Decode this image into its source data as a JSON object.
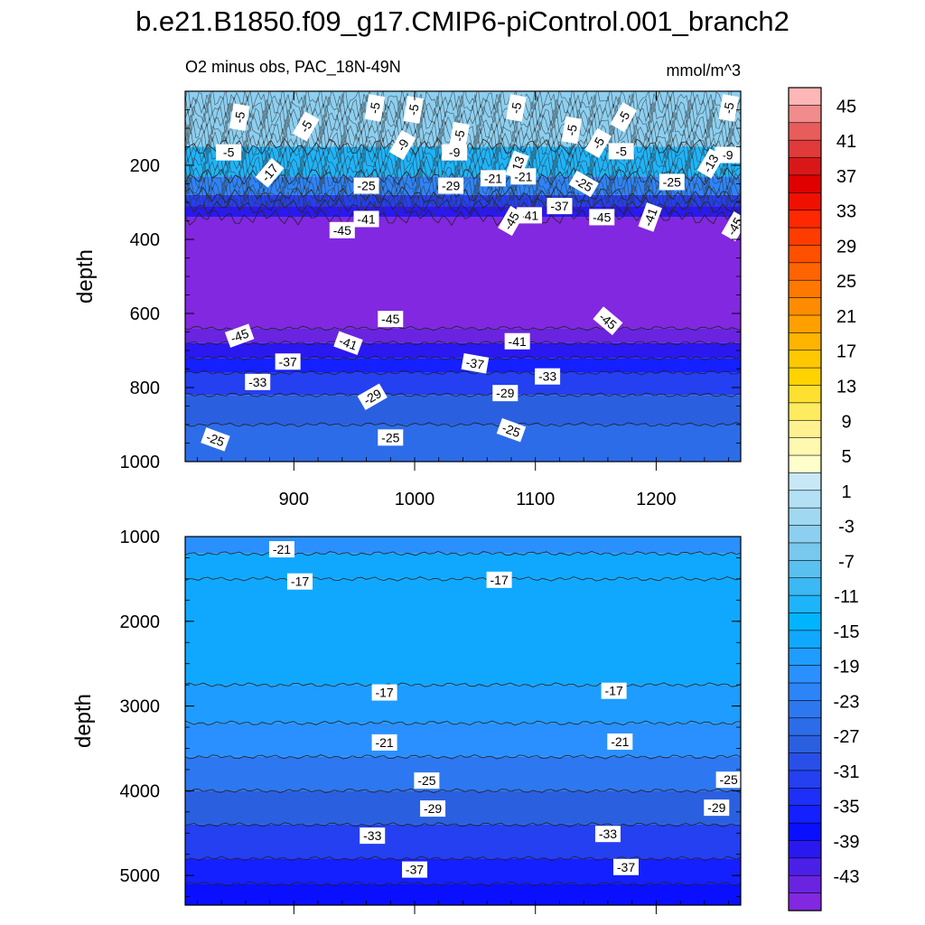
{
  "title": "b.e21.B1850.f09_g17.CMIP6-piControl.001_branch2",
  "subtitle_left": "O2 minus obs, PAC_18N-49N",
  "subtitle_right": "mmol/m^3",
  "chart_data": [
    {
      "type": "heatmap",
      "panel": "upper",
      "xlabel": "",
      "ylabel": "depth",
      "xlim": [
        810,
        1270
      ],
      "ylim": [
        1000,
        0
      ],
      "x_ticks": [
        900,
        1000,
        1100,
        1200
      ],
      "y_ticks": [
        200,
        400,
        600,
        800,
        1000
      ],
      "layers": [
        {
          "depth": [
            0,
            150
          ],
          "value": -4
        },
        {
          "depth": [
            150,
            230
          ],
          "value": -12
        },
        {
          "depth": [
            230,
            280
          ],
          "value": -22
        },
        {
          "depth": [
            280,
            310
          ],
          "value": -32
        },
        {
          "depth": [
            310,
            340
          ],
          "value": -40
        },
        {
          "depth": [
            340,
            640
          ],
          "value": -46
        },
        {
          "depth": [
            640,
            680
          ],
          "value": -44
        },
        {
          "depth": [
            680,
            720
          ],
          "value": -40
        },
        {
          "depth": [
            720,
            760
          ],
          "value": -36
        },
        {
          "depth": [
            760,
            820
          ],
          "value": -32
        },
        {
          "depth": [
            820,
            900
          ],
          "value": -29
        },
        {
          "depth": [
            900,
            1000
          ],
          "value": -26
        }
      ],
      "contour_labels": [
        {
          "x": 855,
          "depth": 70,
          "text": "-5",
          "rot": -80
        },
        {
          "x": 910,
          "depth": 95,
          "text": "-5",
          "rot": -60
        },
        {
          "x": 967,
          "depth": 45,
          "text": "-5",
          "rot": -80
        },
        {
          "x": 1037,
          "depth": 120,
          "text": "-5",
          "rot": -80
        },
        {
          "x": 846,
          "depth": 165,
          "text": "-5",
          "rot": 0
        },
        {
          "x": 1084,
          "depth": 45,
          "text": "-5",
          "rot": -80
        },
        {
          "x": 1130,
          "depth": 105,
          "text": "-5",
          "rot": -80
        },
        {
          "x": 1152,
          "depth": 140,
          "text": "-5",
          "rot": -60
        },
        {
          "x": 1173,
          "depth": 70,
          "text": "-5",
          "rot": -60
        },
        {
          "x": 1171,
          "depth": 162,
          "text": "-5",
          "rot": 0
        },
        {
          "x": 1260,
          "depth": 45,
          "text": "-5",
          "rot": -80
        },
        {
          "x": 999,
          "depth": 50,
          "text": "-5",
          "rot": -80
        },
        {
          "x": 990,
          "depth": 145,
          "text": "-9",
          "rot": -60
        },
        {
          "x": 1033,
          "depth": 165,
          "text": "-9",
          "rot": 0
        },
        {
          "x": 1259,
          "depth": 172,
          "text": "-9",
          "rot": 0
        },
        {
          "x": 1085,
          "depth": 200,
          "text": "-13",
          "rot": -70
        },
        {
          "x": 1245,
          "depth": 195,
          "text": "-13",
          "rot": -60
        },
        {
          "x": 880,
          "depth": 220,
          "text": "-17",
          "rot": -50
        },
        {
          "x": 960,
          "depth": 255,
          "text": "-25",
          "rot": 0
        },
        {
          "x": 1140,
          "depth": 250,
          "text": "-25",
          "rot": 30
        },
        {
          "x": 1213,
          "depth": 245,
          "text": "-25",
          "rot": 0
        },
        {
          "x": 1030,
          "depth": 255,
          "text": "-29",
          "rot": 0
        },
        {
          "x": 1090,
          "depth": 230,
          "text": "-21",
          "rot": 0
        },
        {
          "x": 1065,
          "depth": 235,
          "text": "-21",
          "rot": 0
        },
        {
          "x": 1120,
          "depth": 310,
          "text": "-37",
          "rot": 0
        },
        {
          "x": 960,
          "depth": 345,
          "text": "-41",
          "rot": 0
        },
        {
          "x": 1095,
          "depth": 335,
          "text": "-41",
          "rot": 0
        },
        {
          "x": 1195,
          "depth": 340,
          "text": "-41",
          "rot": -70
        },
        {
          "x": 940,
          "depth": 375,
          "text": "-45",
          "rot": 0
        },
        {
          "x": 1080,
          "depth": 350,
          "text": "-45",
          "rot": -60
        },
        {
          "x": 1155,
          "depth": 340,
          "text": "-45",
          "rot": 0
        },
        {
          "x": 1265,
          "depth": 365,
          "text": "-45",
          "rot": -60
        },
        {
          "x": 980,
          "depth": 615,
          "text": "-45",
          "rot": 0
        },
        {
          "x": 1160,
          "depth": 620,
          "text": "-45",
          "rot": 40
        },
        {
          "x": 855,
          "depth": 660,
          "text": "-45",
          "rot": -20
        },
        {
          "x": 945,
          "depth": 680,
          "text": "-41",
          "rot": 20
        },
        {
          "x": 1085,
          "depth": 675,
          "text": "-41",
          "rot": 0
        },
        {
          "x": 895,
          "depth": 730,
          "text": "-37",
          "rot": 0
        },
        {
          "x": 1050,
          "depth": 735,
          "text": "-37",
          "rot": 10
        },
        {
          "x": 870,
          "depth": 785,
          "text": "-33",
          "rot": 0
        },
        {
          "x": 1110,
          "depth": 770,
          "text": "-33",
          "rot": 0
        },
        {
          "x": 965,
          "depth": 825,
          "text": "-29",
          "rot": -30
        },
        {
          "x": 1075,
          "depth": 815,
          "text": "-29",
          "rot": 0
        },
        {
          "x": 835,
          "depth": 940,
          "text": "-25",
          "rot": 20
        },
        {
          "x": 980,
          "depth": 935,
          "text": "-25",
          "rot": 0
        },
        {
          "x": 1080,
          "depth": 915,
          "text": "-25",
          "rot": 20
        }
      ]
    },
    {
      "type": "heatmap",
      "panel": "lower",
      "xlabel": "",
      "ylabel": "depth",
      "xlim": [
        810,
        1270
      ],
      "ylim": [
        5350,
        1000
      ],
      "y_ticks": [
        1000,
        2000,
        3000,
        4000,
        5000
      ],
      "layers": [
        {
          "depth": [
            1000,
            1200
          ],
          "value": -20
        },
        {
          "depth": [
            1200,
            1500
          ],
          "value": -17
        },
        {
          "depth": [
            1500,
            2750
          ],
          "value": -16
        },
        {
          "depth": [
            2750,
            3200
          ],
          "value": -18
        },
        {
          "depth": [
            3200,
            3600
          ],
          "value": -21
        },
        {
          "depth": [
            3600,
            4000
          ],
          "value": -25
        },
        {
          "depth": [
            4000,
            4400
          ],
          "value": -28
        },
        {
          "depth": [
            4400,
            4800
          ],
          "value": -32
        },
        {
          "depth": [
            4800,
            5100
          ],
          "value": -36
        },
        {
          "depth": [
            5100,
            5350
          ],
          "value": -38
        }
      ],
      "contour_labels": [
        {
          "x": 890,
          "depth": 1150,
          "text": "-21",
          "rot": 0
        },
        {
          "x": 905,
          "depth": 1530,
          "text": "-17",
          "rot": 0
        },
        {
          "x": 1070,
          "depth": 1510,
          "text": "-17",
          "rot": 0
        },
        {
          "x": 975,
          "depth": 2840,
          "text": "-17",
          "rot": 0
        },
        {
          "x": 1165,
          "depth": 2820,
          "text": "-17",
          "rot": 0
        },
        {
          "x": 975,
          "depth": 3430,
          "text": "-21",
          "rot": 0
        },
        {
          "x": 1170,
          "depth": 3420,
          "text": "-21",
          "rot": 0
        },
        {
          "x": 1010,
          "depth": 3880,
          "text": "-25",
          "rot": 0
        },
        {
          "x": 1260,
          "depth": 3870,
          "text": "-25",
          "rot": 0
        },
        {
          "x": 1015,
          "depth": 4210,
          "text": "-29",
          "rot": 0
        },
        {
          "x": 1250,
          "depth": 4200,
          "text": "-29",
          "rot": 0
        },
        {
          "x": 965,
          "depth": 4530,
          "text": "-33",
          "rot": 0
        },
        {
          "x": 1160,
          "depth": 4510,
          "text": "-33",
          "rot": 0
        },
        {
          "x": 1000,
          "depth": 4930,
          "text": "-37",
          "rot": 0
        },
        {
          "x": 1175,
          "depth": 4900,
          "text": "-37",
          "rot": 0
        }
      ]
    }
  ],
  "colorbar": {
    "labels": [
      "45",
      "41",
      "37",
      "33",
      "29",
      "25",
      "21",
      "17",
      "13",
      "9",
      "5",
      "1",
      "-3",
      "-7",
      "-11",
      "-15",
      "-19",
      "-23",
      "-27",
      "-31",
      "-35",
      "-39",
      "-43"
    ],
    "colors": [
      "#ffb6b6",
      "#f08c8c",
      "#e85c5c",
      "#e03a3a",
      "#d81818",
      "#e00000",
      "#f01000",
      "#ff2800",
      "#ff3c00",
      "#ff5000",
      "#ff6400",
      "#ff7800",
      "#ff8c00",
      "#ffa000",
      "#ffb400",
      "#ffc800",
      "#ffd200",
      "#ffe030",
      "#ffeb60",
      "#fff090",
      "#fff8b0",
      "#ffffcc",
      "#c8e8f8",
      "#b4e0f5",
      "#a0d8f2",
      "#8ccff0",
      "#78c8ee",
      "#5ac0f0",
      "#3cb8f5",
      "#1eb4fa",
      "#00b4ff",
      "#10a8ff",
      "#1e9cff",
      "#2a90ff",
      "#2d84f8",
      "#2d78f0",
      "#2d6ce8",
      "#2a60e0",
      "#2850e8",
      "#2440f0",
      "#1e30f8",
      "#1420ff",
      "#0a10ff",
      "#2a18f0",
      "#4a20e8",
      "#6a24e0",
      "#8228e0"
    ]
  }
}
